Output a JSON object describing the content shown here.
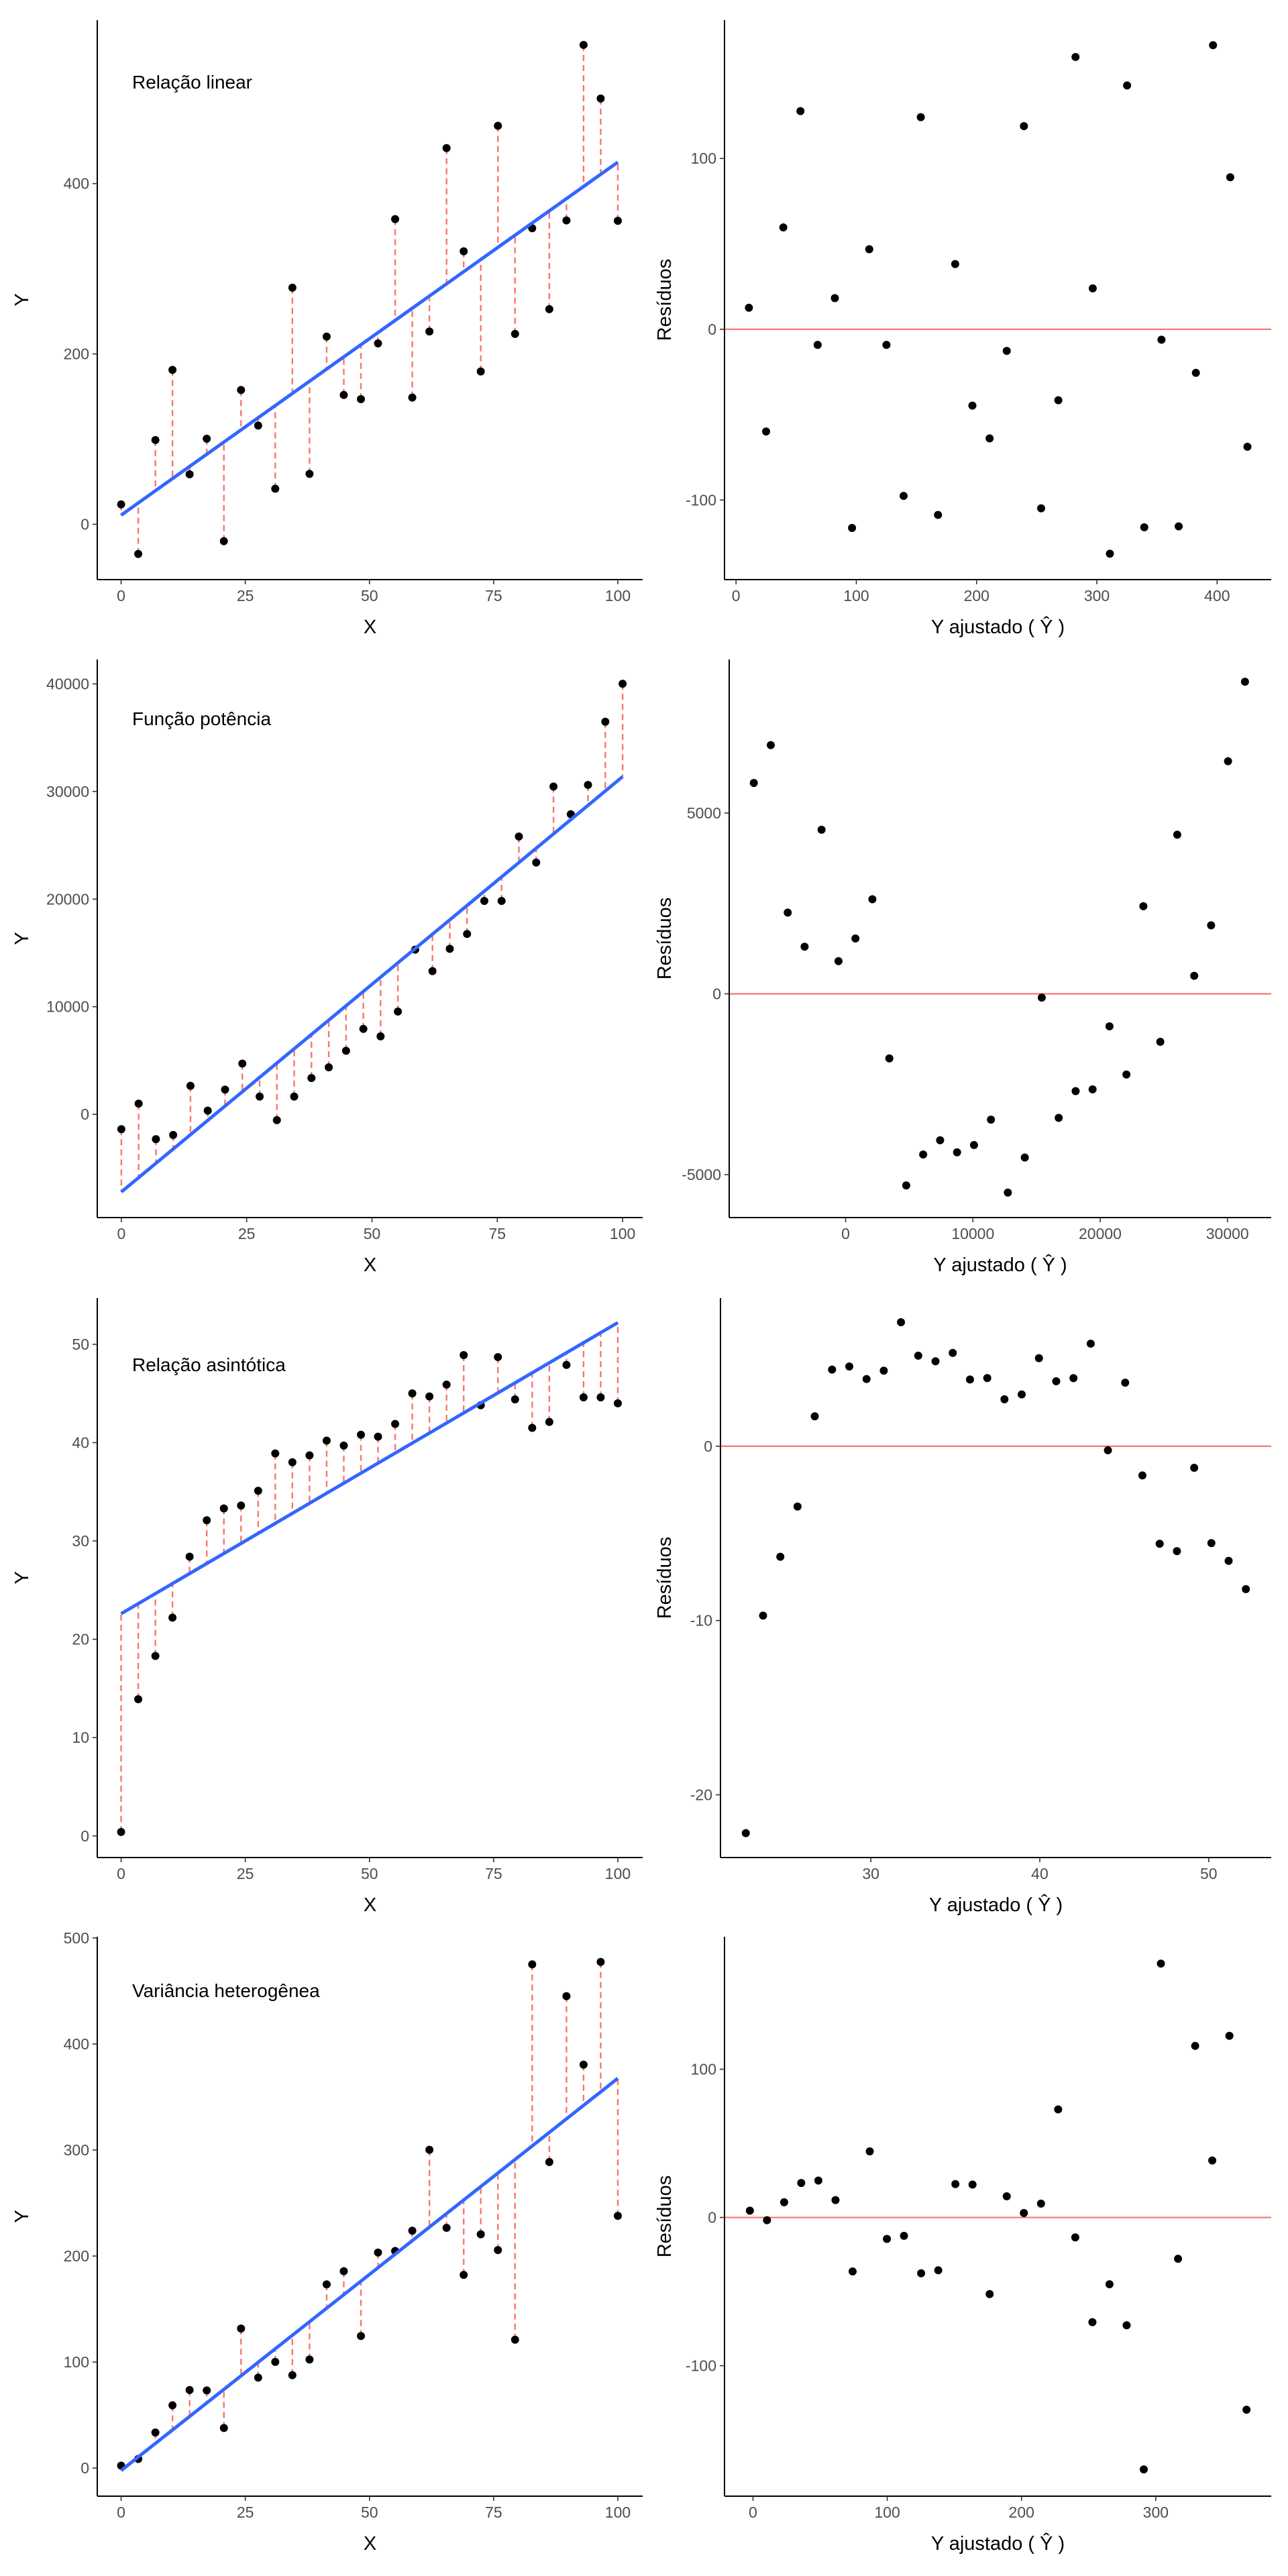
{
  "colors": {
    "point": "#000000",
    "fit_line": "#3366FF",
    "residual_segment": "#F8766D",
    "zero_line": "#F8766D",
    "axis": "#000000",
    "tick_label": "#4d4d4d"
  },
  "chart_data": [
    {
      "type": "scatter",
      "panel": "row1-left",
      "title": "Relação linear",
      "xlabel": "X",
      "ylabel": "Y",
      "xlim": [
        -4.8,
        105
      ],
      "ylim": [
        -65,
        592
      ],
      "xticks": [
        0,
        25,
        50,
        75,
        100
      ],
      "yticks": [
        0,
        200,
        400
      ],
      "grid": false,
      "x": [
        0,
        3.45,
        6.9,
        10.34,
        13.79,
        17.24,
        20.69,
        24.14,
        27.59,
        31.03,
        34.48,
        37.93,
        41.38,
        44.83,
        48.28,
        51.72,
        55.17,
        58.62,
        62.07,
        65.52,
        68.97,
        72.41,
        75.86,
        79.31,
        82.76,
        86.21,
        89.66,
        93.1,
        96.55,
        100
      ],
      "y": [
        23.3,
        -34.9,
        98.9,
        181.3,
        58.7,
        100.4,
        -19.9,
        157.6,
        115.9,
        41.7,
        277.8,
        59.2,
        220.4,
        151.8,
        146.9,
        212.4,
        358.3,
        148.8,
        226.4,
        441.7,
        320.5,
        179.4,
        467.9,
        223.5,
        347.6,
        252.6,
        356.8,
        562.9,
        499.9,
        356.4
      ],
      "fit": {
        "intercept": 10.7,
        "slope": 4.145
      },
      "residual_segments": "dashed"
    },
    {
      "type": "scatter",
      "panel": "row1-right",
      "title": "",
      "xlabel": "Y ajustado ( Ŷ )",
      "ylabel": "Resíduos",
      "xlim": [
        -9.6,
        445
      ],
      "ylim": [
        -146.6,
        181
      ],
      "xticks": [
        0,
        100,
        200,
        300,
        400
      ],
      "yticks": [
        -100,
        0,
        100
      ],
      "grid": false,
      "reference_line": 0,
      "source": "residuals of row1-left"
    },
    {
      "type": "scatter",
      "panel": "row2-left",
      "title": "Função potência",
      "xlabel": "X",
      "ylabel": "Y",
      "xlim": [
        -4.8,
        104
      ],
      "ylim": [
        -9590,
        42270
      ],
      "xticks": [
        0,
        25,
        50,
        75,
        100
      ],
      "yticks": [
        0,
        10000,
        20000,
        30000,
        40000
      ],
      "grid": false,
      "x": [
        0,
        3.45,
        6.9,
        10.34,
        13.79,
        17.24,
        20.69,
        24.14,
        27.59,
        31.03,
        34.48,
        37.93,
        41.38,
        44.83,
        48.28,
        51.72,
        55.17,
        58.62,
        62.07,
        65.52,
        68.97,
        72.41,
        75.86,
        79.31,
        82.76,
        86.21,
        89.66,
        93.1,
        96.55,
        100
      ],
      "y": [
        -1381,
        997,
        -2302,
        -1918,
        2647,
        345,
        2302,
        4719,
        1650,
        -537,
        1650,
        3376,
        4373,
        5907,
        7940,
        7250,
        9551,
        15305,
        13310,
        15382,
        16763,
        19832,
        19832,
        25816,
        23399,
        30456,
        27886,
        30610,
        36479,
        40008
      ],
      "fit": {
        "intercept": -7212,
        "slope": 385.9
      },
      "residual_segments": "dashed"
    },
    {
      "type": "scatter",
      "panel": "row2-right",
      "title": "",
      "xlabel": "Y ajustado ( Ŷ )",
      "ylabel": "Resíduos",
      "xlim": [
        -9147,
        33440
      ],
      "ylim": [
        -6187,
        9247
      ],
      "xticks": [
        0,
        10000,
        20000,
        30000
      ],
      "yticks": [
        -5000,
        0,
        5000
      ],
      "grid": false,
      "reference_line": 0,
      "source": "residuals of row2-left"
    },
    {
      "type": "scatter",
      "panel": "row3-left",
      "title": "Relação asintótica",
      "xlabel": "X",
      "ylabel": "Y",
      "xlim": [
        -4.8,
        105
      ],
      "ylim": [
        -2.2,
        54.7
      ],
      "xticks": [
        0,
        25,
        50,
        75,
        100
      ],
      "yticks": [
        0,
        10,
        20,
        30,
        40,
        50
      ],
      "grid": false,
      "x": [
        0,
        3.45,
        6.9,
        10.34,
        13.79,
        17.24,
        20.69,
        24.14,
        27.59,
        31.03,
        34.48,
        37.93,
        41.38,
        44.83,
        48.28,
        51.72,
        55.17,
        58.62,
        62.07,
        65.52,
        68.97,
        72.41,
        75.86,
        79.31,
        82.76,
        86.21,
        89.66,
        93.1,
        96.55,
        100
      ],
      "y": [
        0.4,
        13.9,
        18.3,
        22.2,
        28.4,
        32.1,
        33.3,
        33.6,
        35.1,
        38.9,
        38.0,
        38.7,
        40.2,
        39.7,
        40.8,
        40.6,
        41.9,
        45.0,
        44.7,
        45.9,
        48.9,
        43.8,
        48.7,
        44.4,
        41.5,
        42.1,
        47.9,
        44.6,
        44.6,
        44.0
      ],
      "fit": {
        "intercept": 22.6,
        "slope": 0.296
      },
      "residual_segments": "dashed"
    },
    {
      "type": "scatter",
      "panel": "row3-right",
      "title": "",
      "xlabel": "Y ajustado ( Ŷ )",
      "ylabel": "Resíduos",
      "xlim": [
        21.1,
        53.7
      ],
      "ylim": [
        -23.6,
        8.5
      ],
      "xticks": [
        30,
        40,
        50
      ],
      "yticks": [
        -20,
        -10,
        0
      ],
      "grid": false,
      "reference_line": 0,
      "source": "residuals of row3-left"
    },
    {
      "type": "scatter",
      "panel": "row4-left",
      "title": "Variância heterogênea",
      "xlabel": "X",
      "ylabel": "Y",
      "xlim": [
        -4.8,
        105
      ],
      "ylim": [
        -26.5,
        501.2
      ],
      "xticks": [
        0,
        25,
        50,
        75,
        100
      ],
      "yticks": [
        0,
        100,
        200,
        300,
        400,
        500
      ],
      "grid": false,
      "x": [
        0,
        3.45,
        6.9,
        10.34,
        13.79,
        17.24,
        20.69,
        24.14,
        27.59,
        31.03,
        34.48,
        37.93,
        41.38,
        44.83,
        48.28,
        51.72,
        55.17,
        58.62,
        62.07,
        65.52,
        68.97,
        72.41,
        75.86,
        79.31,
        82.76,
        86.21,
        89.66,
        93.1,
        96.55,
        100
      ],
      "y": [
        2.3,
        8.6,
        33.5,
        59.2,
        73.6,
        73.2,
        37.8,
        131.6,
        85.3,
        100.1,
        87.6,
        102.4,
        173.3,
        185.7,
        124.6,
        203.3,
        204.8,
        223.9,
        300.2,
        226.6,
        182.2,
        220.5,
        205.6,
        121.1,
        475.1,
        288.7,
        445.1,
        380.5,
        477.4,
        237.9
      ],
      "fit": {
        "intercept": -2.3,
        "slope": 3.699
      },
      "residual_segments": "dashed"
    },
    {
      "type": "scatter",
      "panel": "row4-right",
      "title": "",
      "xlabel": "Y ajustado ( Ŷ )",
      "ylabel": "Resíduos",
      "xlim": [
        -21.2,
        386
      ],
      "ylim": [
        -188,
        189.4
      ],
      "xticks": [
        0,
        100,
        200,
        300
      ],
      "yticks": [
        -100,
        0,
        100
      ],
      "grid": false,
      "reference_line": 0,
      "source": "residuals of row4-left"
    }
  ]
}
